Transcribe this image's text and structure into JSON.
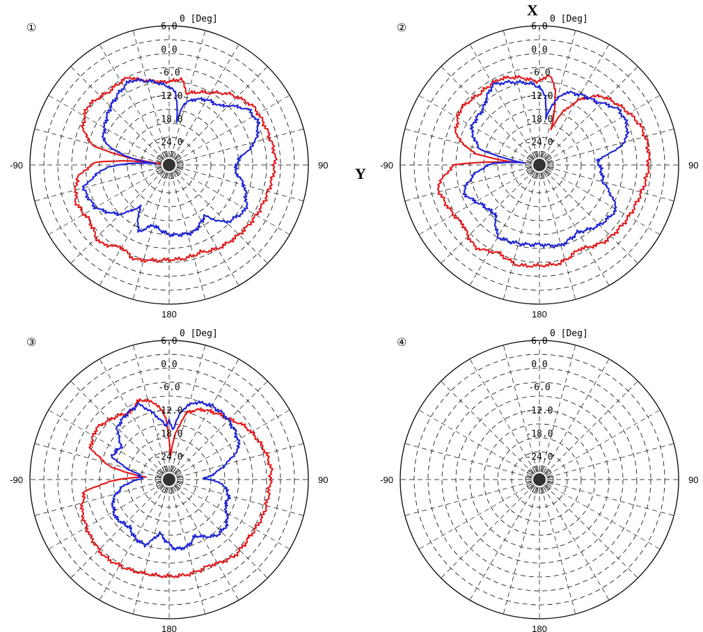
{
  "axis_letters": {
    "x": "X",
    "y": "Y"
  },
  "colors": {
    "series_red": "#e41a1c",
    "series_blue": "#1f26d6",
    "grid": "#000000",
    "center": "#333333"
  },
  "chart_data": [
    {
      "type": "polar",
      "panel_label": "①",
      "angle_ticks": [
        "0 [Deg]",
        "90",
        "180",
        "-90"
      ],
      "radial_ticks": [
        "6.0",
        "0.0",
        "-6.0",
        "-12.0",
        "-18.0",
        "-24.0"
      ],
      "rlim": [
        -30,
        6
      ],
      "grid": true,
      "series": [
        {
          "color": "red",
          "points": [
            [
              0,
              -8.6
            ],
            [
              8,
              -7.5
            ],
            [
              14,
              -11
            ],
            [
              20,
              -10
            ],
            [
              30,
              -8.5
            ],
            [
              40,
              -6
            ],
            [
              55,
              -3.5
            ],
            [
              65,
              -3.3
            ],
            [
              75,
              -3
            ],
            [
              85,
              -2.5
            ],
            [
              95,
              -3
            ],
            [
              105,
              -3.5
            ],
            [
              120,
              -4
            ],
            [
              135,
              -4.5
            ],
            [
              150,
              -5
            ],
            [
              160,
              -6
            ],
            [
              170,
              -5.5
            ],
            [
              180,
              -5.5
            ],
            [
              190,
              -5
            ],
            [
              200,
              -4
            ],
            [
              210,
              -5.5
            ],
            [
              222,
              -3
            ],
            [
              235,
              -5
            ],
            [
              248,
              -4
            ],
            [
              262,
              -6
            ],
            [
              272,
              -11
            ],
            [
              276,
              -20
            ],
            [
              278,
              -28
            ],
            [
              280,
              -20
            ],
            [
              284,
              -10
            ],
            [
              292,
              -6
            ],
            [
              305,
              -4
            ],
            [
              320,
              -5.5
            ],
            [
              335,
              -5
            ],
            [
              342,
              -7
            ],
            [
              350,
              -8
            ],
            [
              356,
              -8.5
            ]
          ]
        },
        {
          "color": "blue",
          "points": [
            [
              0,
              -10
            ],
            [
              5,
              -11
            ],
            [
              8,
              -15
            ],
            [
              10,
              -19
            ],
            [
              13,
              -14
            ],
            [
              20,
              -12
            ],
            [
              30,
              -10.5
            ],
            [
              40,
              -10
            ],
            [
              55,
              -5
            ],
            [
              65,
              -4.5
            ],
            [
              75,
              -7
            ],
            [
              85,
              -12
            ],
            [
              95,
              -13
            ],
            [
              105,
              -10
            ],
            [
              120,
              -7
            ],
            [
              135,
              -9
            ],
            [
              145,
              -14
            ],
            [
              160,
              -11.5
            ],
            [
              180,
              -12
            ],
            [
              195,
              -14
            ],
            [
              205,
              -11
            ],
            [
              215,
              -17
            ],
            [
              225,
              -12
            ],
            [
              240,
              -8
            ],
            [
              255,
              -7
            ],
            [
              268,
              -14
            ],
            [
              276,
              -26
            ],
            [
              282,
              -18
            ],
            [
              290,
              -12
            ],
            [
              305,
              -10
            ],
            [
              320,
              -8
            ],
            [
              335,
              -6
            ],
            [
              345,
              -7.5
            ],
            [
              355,
              -9
            ]
          ]
        }
      ]
    },
    {
      "type": "polar",
      "panel_label": "②",
      "angle_ticks": [
        "0 [Deg]",
        "90",
        "180",
        "-90"
      ],
      "radial_ticks": [
        "6.0",
        "0.0",
        "-6.0",
        "-12.0",
        "-18.0",
        "-24.0"
      ],
      "rlim": [
        -30,
        6
      ],
      "grid": true,
      "series": [
        {
          "color": "red",
          "points": [
            [
              0,
              -8.5
            ],
            [
              6,
              -6.5
            ],
            [
              12,
              -10
            ],
            [
              18,
              -20
            ],
            [
              24,
              -15
            ],
            [
              32,
              -10
            ],
            [
              42,
              -6
            ],
            [
              55,
              -4
            ],
            [
              68,
              -2
            ],
            [
              80,
              -1.5
            ],
            [
              95,
              -2
            ],
            [
              110,
              -3
            ],
            [
              125,
              -3.5
            ],
            [
              140,
              -4
            ],
            [
              155,
              -6
            ],
            [
              168,
              -4
            ],
            [
              180,
              -4
            ],
            [
              192,
              -3.5
            ],
            [
              205,
              -5
            ],
            [
              218,
              -3
            ],
            [
              232,
              -5
            ],
            [
              245,
              -4
            ],
            [
              258,
              -3
            ],
            [
              270,
              -8
            ],
            [
              276,
              -24
            ],
            [
              280,
              -13
            ],
            [
              290,
              -7
            ],
            [
              305,
              -5
            ],
            [
              320,
              -6
            ],
            [
              335,
              -5.5
            ],
            [
              345,
              -6.5
            ],
            [
              355,
              -8
            ]
          ]
        },
        {
          "color": "blue",
          "points": [
            [
              0,
              -10
            ],
            [
              5,
              -12
            ],
            [
              8,
              -18
            ],
            [
              12,
              -14
            ],
            [
              20,
              -10
            ],
            [
              30,
              -9
            ],
            [
              42,
              -8
            ],
            [
              55,
              -5
            ],
            [
              65,
              -5
            ],
            [
              75,
              -7
            ],
            [
              85,
              -15
            ],
            [
              95,
              -14
            ],
            [
              105,
              -13
            ],
            [
              120,
              -7
            ],
            [
              135,
              -8
            ],
            [
              150,
              -10
            ],
            [
              165,
              -8.5
            ],
            [
              180,
              -9.5
            ],
            [
              195,
              -9
            ],
            [
              210,
              -8.5
            ],
            [
              222,
              -13
            ],
            [
              235,
              -12
            ],
            [
              250,
              -9
            ],
            [
              262,
              -13
            ],
            [
              272,
              -18
            ],
            [
              278,
              -26
            ],
            [
              285,
              -14
            ],
            [
              298,
              -10
            ],
            [
              315,
              -9.5
            ],
            [
              330,
              -6
            ],
            [
              342,
              -7.5
            ],
            [
              355,
              -9
            ]
          ]
        }
      ]
    },
    {
      "type": "polar",
      "panel_label": "③",
      "angle_ticks": [
        "0 [Deg]",
        "90",
        "180",
        "-90"
      ],
      "radial_ticks": [
        "6.0",
        "0.0",
        "-6.0",
        "-12.0",
        "-18.0",
        "-24.0"
      ],
      "rlim": [
        -30,
        6
      ],
      "grid": true,
      "series": [
        {
          "color": "red",
          "points": [
            [
              0,
              -20
            ],
            [
              3,
              -24
            ],
            [
              8,
              -18
            ],
            [
              15,
              -12
            ],
            [
              25,
              -10
            ],
            [
              35,
              -9
            ],
            [
              45,
              -8
            ],
            [
              55,
              -6
            ],
            [
              65,
              -5
            ],
            [
              75,
              -4
            ],
            [
              85,
              -3.5
            ],
            [
              95,
              -4
            ],
            [
              110,
              -4
            ],
            [
              125,
              -4.5
            ],
            [
              140,
              -4
            ],
            [
              155,
              -5.5
            ],
            [
              168,
              -5
            ],
            [
              180,
              -5
            ],
            [
              192,
              -5
            ],
            [
              205,
              -4.5
            ],
            [
              220,
              -4
            ],
            [
              235,
              -5
            ],
            [
              250,
              -6
            ],
            [
              262,
              -8
            ],
            [
              270,
              -17
            ],
            [
              276,
              -24
            ],
            [
              282,
              -15
            ],
            [
              292,
              -8
            ],
            [
              305,
              -7
            ],
            [
              318,
              -8.5
            ],
            [
              330,
              -10
            ],
            [
              340,
              -8
            ],
            [
              350,
              -10
            ],
            [
              357,
              -14
            ]
          ]
        },
        {
          "color": "blue",
          "points": [
            [
              0,
              -15
            ],
            [
              5,
              -17
            ],
            [
              10,
              -12
            ],
            [
              18,
              -9
            ],
            [
              28,
              -8
            ],
            [
              40,
              -8
            ],
            [
              55,
              -9
            ],
            [
              65,
              -10
            ],
            [
              75,
              -15
            ],
            [
              82,
              -18
            ],
            [
              88,
              -21
            ],
            [
              95,
              -16
            ],
            [
              105,
              -14
            ],
            [
              115,
              -14
            ],
            [
              128,
              -11
            ],
            [
              140,
              -11
            ],
            [
              155,
              -14
            ],
            [
              165,
              -12
            ],
            [
              175,
              -12
            ],
            [
              190,
              -16
            ],
            [
              200,
              -12
            ],
            [
              210,
              -12.5
            ],
            [
              220,
              -14
            ],
            [
              235,
              -13
            ],
            [
              250,
              -14.5
            ],
            [
              262,
              -18
            ],
            [
              272,
              -23
            ],
            [
              280,
              -22
            ],
            [
              292,
              -14
            ],
            [
              305,
              -15
            ],
            [
              315,
              -11
            ],
            [
              325,
              -10
            ],
            [
              338,
              -9
            ],
            [
              348,
              -13
            ],
            [
              356,
              -16
            ]
          ]
        }
      ]
    },
    {
      "type": "polar",
      "panel_label": "④",
      "angle_ticks": [
        "0 [Deg]",
        "90",
        "180",
        "-90"
      ],
      "radial_ticks": [
        "6.0",
        "0.0",
        "-6.0",
        "-12.0",
        "-18.0",
        "-24.0"
      ],
      "rlim": [
        -30,
        6
      ],
      "grid": true,
      "series": []
    }
  ]
}
